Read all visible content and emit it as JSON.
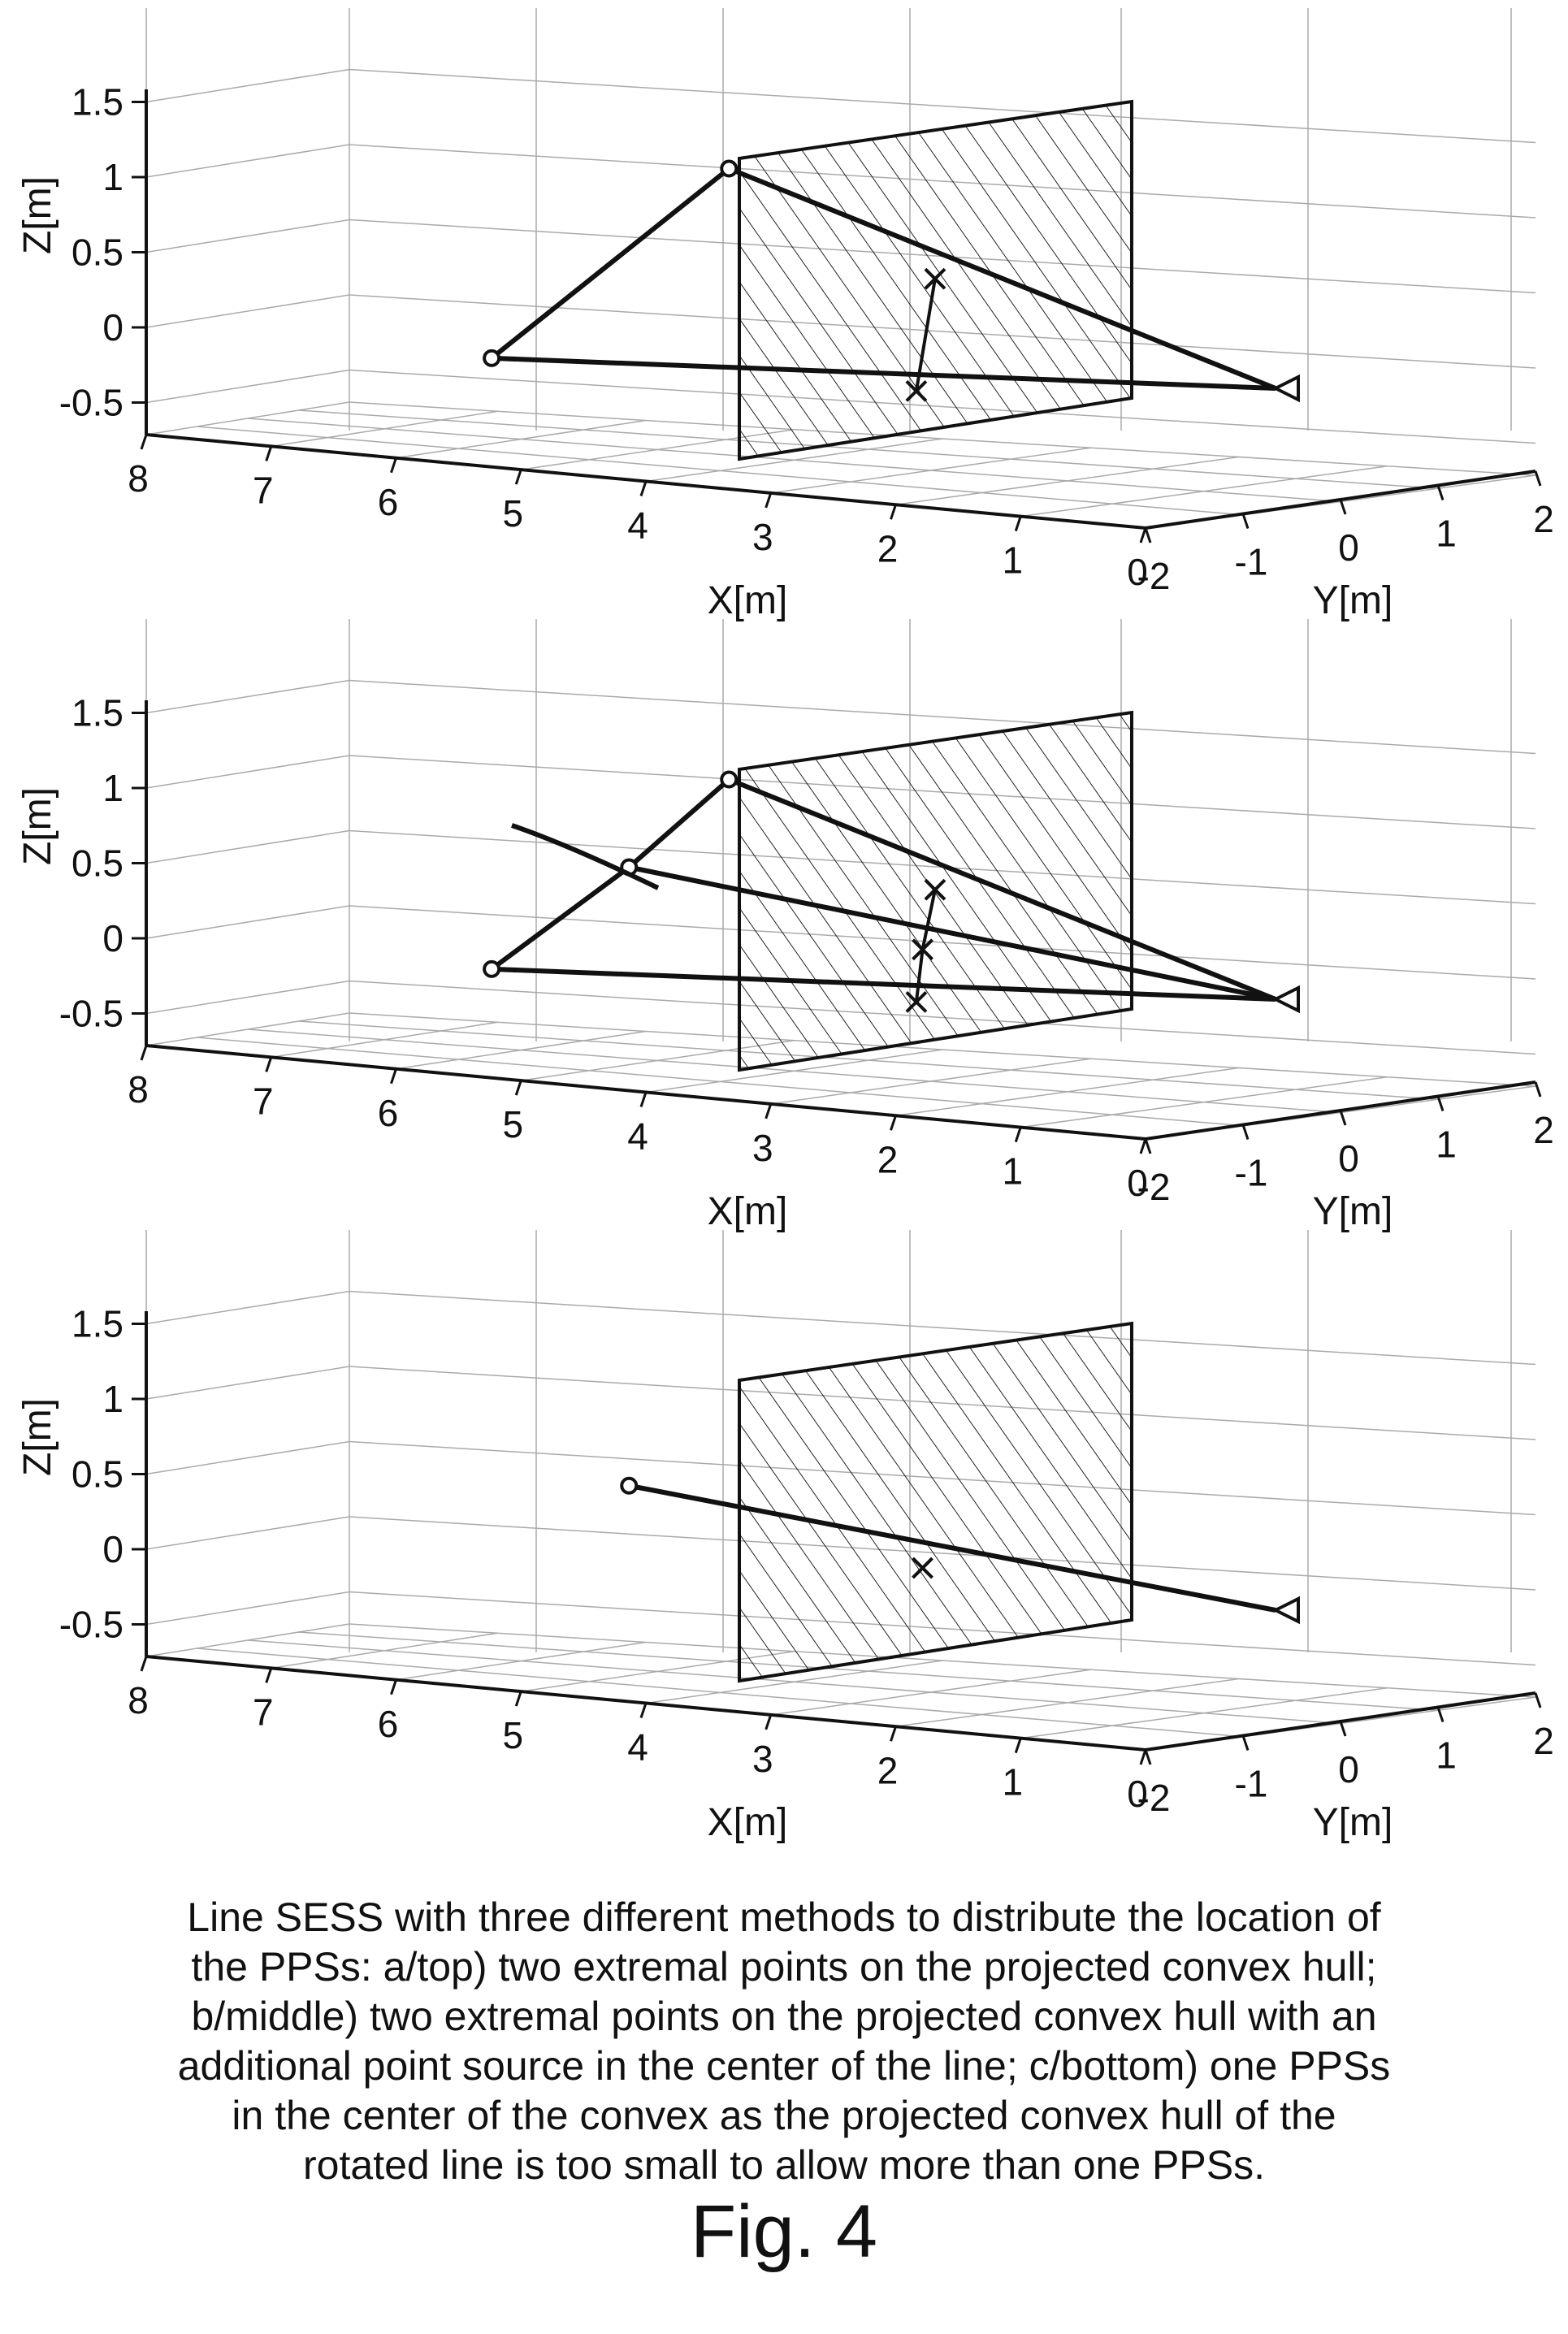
{
  "figure_label": "Fig. 4",
  "caption_lines": [
    "Line SESS with three different methods to distribute the location of",
    "the PPSs: a/top) two extremal points on the projected convex hull;",
    "b/middle) two extremal points on the projected convex hull with an",
    "additional point source in the center of the line; c/bottom) one PPSs",
    "in the center of the convex as the projected convex hull of the",
    "rotated line is too small to allow more than one PPSs."
  ],
  "axes": {
    "x_label": "X[m]",
    "y_label": "Y[m]",
    "z_label": "Z[m]",
    "x_ticks": [
      "8",
      "7",
      "6",
      "5",
      "4",
      "3",
      "2",
      "1",
      "0"
    ],
    "y_ticks": [
      "-2",
      "-1",
      "0",
      "1",
      "2"
    ],
    "z_ticks": [
      "1.5",
      "1",
      "0.5",
      "0",
      "-0.5"
    ]
  },
  "panels": [
    {
      "id": "a/top",
      "line_points": [
        [
          5.3,
          -0.15
        ],
        [
          3.4,
          1.15
        ]
      ],
      "pps": [
        [
          1.75,
          0.45
        ],
        [
          1.9,
          -0.3
        ]
      ],
      "source": [
        0.9,
        -0.4
      ]
    },
    {
      "id": "b/middle",
      "line_points": [
        [
          5.3,
          -0.15
        ],
        [
          4.2,
          0.55
        ],
        [
          3.4,
          1.15
        ]
      ],
      "pps": [
        [
          1.75,
          0.45
        ],
        [
          1.85,
          0.05
        ],
        [
          1.9,
          -0.3
        ]
      ],
      "source": [
        0.9,
        -0.4
      ]
    },
    {
      "id": "c/bottom",
      "line_points": [
        [
          4.2,
          0.5
        ]
      ],
      "pps": [
        [
          1.85,
          0.0
        ]
      ],
      "source": [
        0.9,
        -0.4
      ]
    }
  ]
}
